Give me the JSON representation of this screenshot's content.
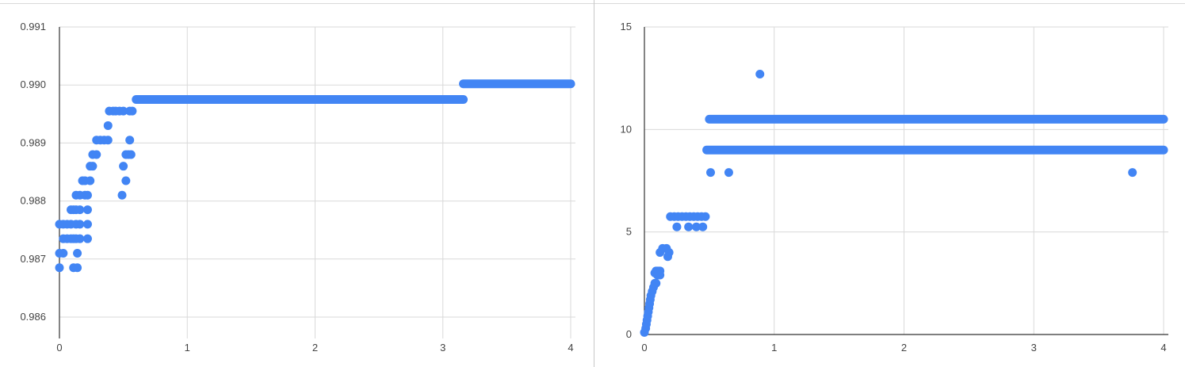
{
  "chart_data": [
    {
      "type": "scatter",
      "title": "",
      "xlabel": "",
      "ylabel": "",
      "xlim": [
        0,
        4
      ],
      "ylim": [
        0.986,
        0.991
      ],
      "x_ticks": [
        "0",
        "1",
        "2",
        "3",
        "4"
      ],
      "y_ticks": [
        "0.986",
        "0.987",
        "0.988",
        "0.989",
        "0.990",
        "0.991"
      ],
      "grid": true,
      "legend": "none",
      "color": "#4285f4",
      "segments": [
        {
          "x_start": 0.6,
          "x_end": 3.16,
          "y": 0.98975
        },
        {
          "x_start": 3.16,
          "x_end": 4.0,
          "y": 0.99002
        }
      ],
      "points": [
        [
          0.0,
          0.98685
        ],
        [
          0.0,
          0.9871
        ],
        [
          0.0,
          0.9876
        ],
        [
          0.03,
          0.9871
        ],
        [
          0.03,
          0.98735
        ],
        [
          0.03,
          0.9876
        ],
        [
          0.06,
          0.98735
        ],
        [
          0.06,
          0.9876
        ],
        [
          0.09,
          0.98735
        ],
        [
          0.09,
          0.9876
        ],
        [
          0.09,
          0.98785
        ],
        [
          0.11,
          0.98685
        ],
        [
          0.11,
          0.98735
        ],
        [
          0.11,
          0.98785
        ],
        [
          0.13,
          0.98735
        ],
        [
          0.13,
          0.9876
        ],
        [
          0.13,
          0.98785
        ],
        [
          0.13,
          0.9881
        ],
        [
          0.14,
          0.98685
        ],
        [
          0.14,
          0.9871
        ],
        [
          0.16,
          0.98735
        ],
        [
          0.16,
          0.9876
        ],
        [
          0.16,
          0.98785
        ],
        [
          0.16,
          0.9881
        ],
        [
          0.18,
          0.98835
        ],
        [
          0.2,
          0.9881
        ],
        [
          0.2,
          0.98835
        ],
        [
          0.22,
          0.98735
        ],
        [
          0.22,
          0.9876
        ],
        [
          0.22,
          0.98785
        ],
        [
          0.22,
          0.9881
        ],
        [
          0.24,
          0.98835
        ],
        [
          0.24,
          0.9886
        ],
        [
          0.26,
          0.9886
        ],
        [
          0.26,
          0.9888
        ],
        [
          0.29,
          0.9888
        ],
        [
          0.29,
          0.98905
        ],
        [
          0.32,
          0.98905
        ],
        [
          0.35,
          0.98905
        ],
        [
          0.38,
          0.98905
        ],
        [
          0.38,
          0.9893
        ],
        [
          0.39,
          0.98955
        ],
        [
          0.42,
          0.98955
        ],
        [
          0.44,
          0.98955
        ],
        [
          0.47,
          0.98955
        ],
        [
          0.5,
          0.98955
        ],
        [
          0.49,
          0.9881
        ],
        [
          0.5,
          0.9886
        ],
        [
          0.52,
          0.98835
        ],
        [
          0.52,
          0.9888
        ],
        [
          0.54,
          0.9888
        ],
        [
          0.56,
          0.9888
        ],
        [
          0.55,
          0.98905
        ],
        [
          0.55,
          0.98955
        ],
        [
          0.57,
          0.98955
        ]
      ]
    },
    {
      "type": "scatter",
      "title": "",
      "xlabel": "",
      "ylabel": "",
      "xlim": [
        0,
        4
      ],
      "ylim": [
        0,
        15
      ],
      "x_ticks": [
        "0",
        "1",
        "2",
        "3",
        "4"
      ],
      "y_ticks": [
        "0",
        "5",
        "10",
        "15"
      ],
      "grid": true,
      "legend": "none",
      "color": "#4285f4",
      "segments": [
        {
          "x_start": 0.5,
          "x_end": 4.0,
          "y": 10.5
        },
        {
          "x_start": 0.48,
          "x_end": 4.0,
          "y": 9.0
        }
      ],
      "points": [
        [
          0.0,
          0.1
        ],
        [
          0.01,
          0.3
        ],
        [
          0.015,
          0.5
        ],
        [
          0.02,
          0.7
        ],
        [
          0.025,
          0.9
        ],
        [
          0.03,
          1.1
        ],
        [
          0.035,
          1.3
        ],
        [
          0.04,
          1.5
        ],
        [
          0.045,
          1.7
        ],
        [
          0.05,
          1.9
        ],
        [
          0.06,
          2.1
        ],
        [
          0.07,
          2.3
        ],
        [
          0.08,
          2.5
        ],
        [
          0.09,
          2.5
        ],
        [
          0.08,
          3.0
        ],
        [
          0.09,
          3.1
        ],
        [
          0.1,
          3.1
        ],
        [
          0.11,
          3.1
        ],
        [
          0.12,
          3.1
        ],
        [
          0.1,
          2.9
        ],
        [
          0.12,
          2.9
        ],
        [
          0.12,
          4.0
        ],
        [
          0.14,
          4.2
        ],
        [
          0.17,
          4.2
        ],
        [
          0.19,
          4.0
        ],
        [
          0.18,
          3.8
        ],
        [
          0.2,
          5.75
        ],
        [
          0.23,
          5.75
        ],
        [
          0.26,
          5.75
        ],
        [
          0.29,
          5.75
        ],
        [
          0.32,
          5.75
        ],
        [
          0.35,
          5.75
        ],
        [
          0.38,
          5.75
        ],
        [
          0.41,
          5.75
        ],
        [
          0.44,
          5.75
        ],
        [
          0.47,
          5.75
        ],
        [
          0.25,
          5.25
        ],
        [
          0.34,
          5.25
        ],
        [
          0.4,
          5.25
        ],
        [
          0.45,
          5.25
        ],
        [
          0.51,
          7.9
        ],
        [
          0.65,
          7.9
        ],
        [
          0.89,
          12.7
        ],
        [
          3.76,
          7.9
        ]
      ]
    }
  ]
}
